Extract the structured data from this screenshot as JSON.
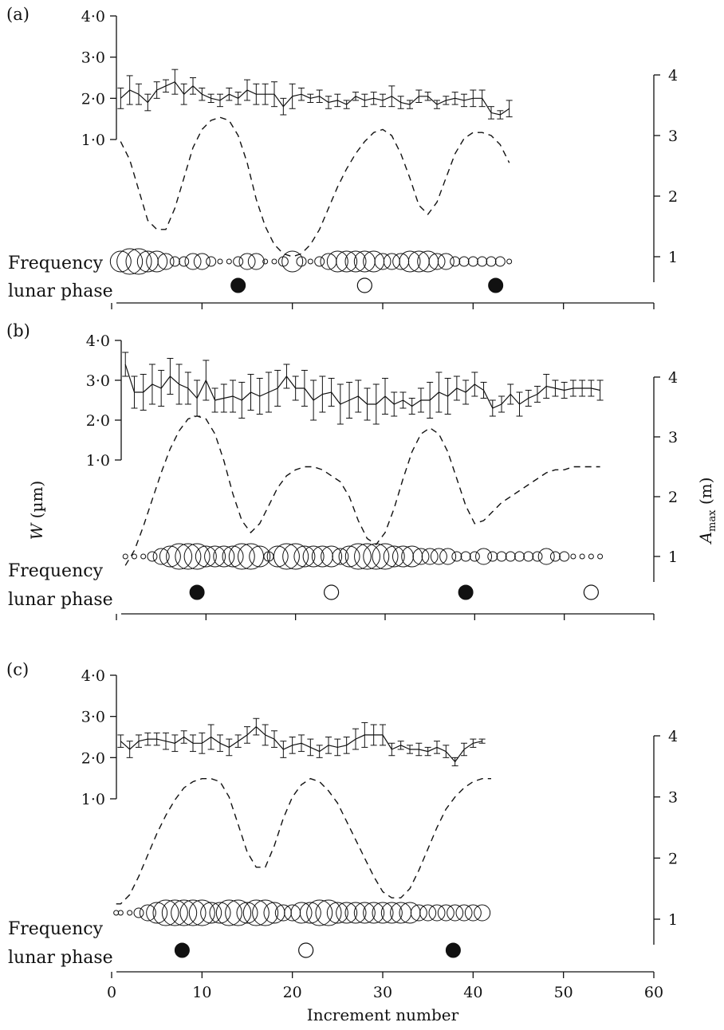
{
  "chart_data": [
    {
      "type": "line",
      "panel_label": "(a)",
      "xlabel": "Increment number",
      "ylabel_left": "W (µm)",
      "ylabel_right": "A max (m)",
      "left_ticks": [
        "4·0",
        "3·0",
        "2·0",
        "1·0"
      ],
      "right_ticks": [
        "4",
        "3",
        "2",
        "1"
      ],
      "left_ylim": [
        1.0,
        4.0
      ],
      "right_ylim": [
        0.5,
        4.0
      ],
      "xlim": [
        0,
        60
      ],
      "series": [
        {
          "kind": "W",
          "x": [
            1,
            2,
            3,
            4,
            5,
            6,
            7,
            8,
            9,
            10,
            11,
            12,
            13,
            14,
            15,
            16,
            17,
            18,
            19,
            20,
            21,
            22,
            23,
            24,
            25,
            26,
            27,
            28,
            29,
            30,
            31,
            32,
            33,
            34,
            35,
            36,
            37,
            38,
            39,
            40,
            41,
            42,
            43,
            44
          ],
          "y": [
            2.0,
            2.2,
            2.1,
            1.9,
            2.2,
            2.3,
            2.4,
            2.1,
            2.3,
            2.1,
            2.0,
            1.95,
            2.1,
            2.0,
            2.2,
            2.1,
            2.1,
            2.1,
            1.8,
            2.05,
            2.1,
            2.0,
            2.05,
            1.9,
            1.95,
            1.85,
            2.05,
            1.95,
            2.0,
            1.95,
            2.05,
            1.9,
            1.85,
            2.05,
            2.05,
            1.85,
            1.95,
            2.0,
            1.95,
            2.0,
            2.0,
            1.65,
            1.6,
            1.75
          ],
          "err": [
            0.25,
            0.35,
            0.25,
            0.2,
            0.2,
            0.15,
            0.3,
            0.25,
            0.2,
            0.15,
            0.1,
            0.15,
            0.15,
            0.15,
            0.25,
            0.25,
            0.25,
            0.3,
            0.2,
            0.3,
            0.15,
            0.1,
            0.15,
            0.15,
            0.15,
            0.1,
            0.1,
            0.15,
            0.15,
            0.15,
            0.25,
            0.15,
            0.1,
            0.15,
            0.1,
            0.1,
            0.1,
            0.15,
            0.15,
            0.2,
            0.2,
            0.15,
            0.1,
            0.2
          ]
        },
        {
          "kind": "Amax",
          "x": [
            1,
            2,
            3,
            4,
            5,
            6,
            7,
            8,
            9,
            10,
            11,
            12,
            13,
            14,
            15,
            16,
            17,
            18,
            19,
            20,
            21,
            22,
            23,
            24,
            25,
            26,
            27,
            28,
            29,
            30,
            31,
            32,
            33,
            34,
            35,
            36,
            37,
            38,
            39,
            40,
            41,
            42,
            43,
            44
          ],
          "y": [
            2.9,
            2.6,
            2.1,
            1.6,
            1.45,
            1.45,
            1.8,
            2.3,
            2.8,
            3.1,
            3.25,
            3.3,
            3.25,
            3.0,
            2.55,
            1.95,
            1.5,
            1.2,
            1.05,
            1.0,
            1.05,
            1.2,
            1.45,
            1.8,
            2.15,
            2.45,
            2.7,
            2.9,
            3.05,
            3.1,
            3.0,
            2.7,
            2.3,
            1.85,
            1.7,
            1.9,
            2.3,
            2.7,
            2.95,
            3.05,
            3.05,
            3.0,
            2.85,
            2.55
          ]
        }
      ],
      "frequency_x": [
        1,
        2,
        3,
        4,
        5,
        6,
        7,
        8,
        9,
        10,
        11,
        12,
        13,
        14,
        15,
        16,
        17,
        18,
        19,
        20,
        21,
        22,
        23,
        24,
        25,
        26,
        27,
        28,
        29,
        30,
        31,
        32,
        33,
        34,
        35,
        36,
        37,
        38,
        39,
        40,
        41,
        42,
        43,
        44
      ],
      "frequency_size": [
        3,
        4,
        4,
        3,
        3,
        2,
        1,
        1,
        2,
        2,
        1,
        0,
        0,
        1,
        2,
        2,
        0,
        0,
        1,
        3,
        1,
        0,
        1,
        2,
        3,
        3,
        3,
        3,
        3,
        2,
        2,
        2,
        3,
        3,
        3,
        2,
        2,
        1,
        1,
        1,
        1,
        1,
        1,
        0
      ],
      "new_moon_x": [
        14,
        42.5
      ],
      "full_moon_x": [
        28
      ],
      "side_labels": [
        "Frequency",
        "lunar phase"
      ]
    },
    {
      "type": "line",
      "panel_label": "(b)",
      "xlabel": "Increment number",
      "ylabel_left": "W (µm)",
      "ylabel_right": "A max (m)",
      "left_ticks": [
        "4·0",
        "3·0",
        "2·0",
        "1·0"
      ],
      "right_ticks": [
        "4",
        "3",
        "2",
        "1"
      ],
      "left_ylim": [
        1.0,
        4.0
      ],
      "right_ylim": [
        0.5,
        4.0
      ],
      "xlim": [
        0,
        60
      ],
      "series": [
        {
          "kind": "W",
          "x": [
            1,
            2,
            3,
            4,
            5,
            6,
            7,
            8,
            9,
            10,
            11,
            12,
            13,
            14,
            15,
            16,
            17,
            18,
            19,
            20,
            21,
            22,
            23,
            24,
            25,
            26,
            27,
            28,
            29,
            30,
            31,
            32,
            33,
            34,
            35,
            36,
            37,
            38,
            39,
            40,
            41,
            42,
            43,
            44,
            45,
            46,
            47,
            48,
            49,
            50,
            51,
            52,
            53,
            54
          ],
          "y": [
            3.4,
            2.7,
            2.7,
            2.9,
            2.8,
            3.1,
            2.9,
            2.8,
            2.55,
            3.0,
            2.5,
            2.55,
            2.6,
            2.5,
            2.7,
            2.6,
            2.7,
            2.8,
            3.1,
            2.8,
            2.8,
            2.5,
            2.65,
            2.7,
            2.4,
            2.5,
            2.6,
            2.4,
            2.4,
            2.6,
            2.4,
            2.5,
            2.35,
            2.5,
            2.5,
            2.7,
            2.6,
            2.8,
            2.7,
            2.9,
            2.75,
            2.3,
            2.4,
            2.65,
            2.4,
            2.55,
            2.65,
            2.85,
            2.8,
            2.75,
            2.8,
            2.8,
            2.8,
            2.75
          ],
          "err": [
            0.3,
            0.4,
            0.45,
            0.5,
            0.45,
            0.45,
            0.5,
            0.4,
            0.45,
            0.5,
            0.3,
            0.35,
            0.4,
            0.45,
            0.45,
            0.45,
            0.5,
            0.45,
            0.3,
            0.3,
            0.45,
            0.5,
            0.45,
            0.35,
            0.5,
            0.45,
            0.4,
            0.4,
            0.5,
            0.45,
            0.3,
            0.2,
            0.2,
            0.3,
            0.45,
            0.5,
            0.45,
            0.3,
            0.3,
            0.3,
            0.2,
            0.2,
            0.2,
            0.25,
            0.3,
            0.2,
            0.2,
            0.3,
            0.2,
            0.2,
            0.2,
            0.2,
            0.2,
            0.25
          ]
        },
        {
          "kind": "Amax",
          "x": [
            1,
            2,
            3,
            4,
            5,
            6,
            7,
            8,
            9,
            10,
            11,
            12,
            13,
            14,
            15,
            16,
            17,
            18,
            19,
            20,
            21,
            22,
            23,
            24,
            25,
            26,
            27,
            28,
            29,
            30,
            31,
            32,
            33,
            34,
            35,
            36,
            37,
            38,
            39,
            40,
            41,
            42,
            43,
            44,
            45,
            46,
            47,
            48,
            49,
            50,
            51,
            52,
            53,
            54
          ],
          "y": [
            0.85,
            1.1,
            1.5,
            1.95,
            2.4,
            2.8,
            3.1,
            3.3,
            3.35,
            3.3,
            3.05,
            2.6,
            2.05,
            1.6,
            1.4,
            1.55,
            1.85,
            2.15,
            2.35,
            2.45,
            2.5,
            2.5,
            2.45,
            2.35,
            2.25,
            2.0,
            1.6,
            1.3,
            1.2,
            1.4,
            1.8,
            2.3,
            2.75,
            3.05,
            3.15,
            3.05,
            2.75,
            2.3,
            1.85,
            1.55,
            1.6,
            1.75,
            1.9,
            2.0,
            2.1,
            2.2,
            2.3,
            2.4,
            2.45,
            2.45,
            2.5,
            2.5,
            2.5,
            2.5
          ]
        }
      ],
      "frequency_x": [
        1,
        2,
        3,
        4,
        5,
        6,
        7,
        8,
        9,
        10,
        11,
        12,
        13,
        14,
        15,
        16,
        17,
        18,
        19,
        20,
        21,
        22,
        23,
        24,
        25,
        26,
        27,
        28,
        29,
        30,
        31,
        32,
        33,
        34,
        35,
        36,
        37,
        38,
        39,
        40,
        41,
        42,
        43,
        44,
        45,
        46,
        47,
        48,
        49,
        50,
        51,
        52,
        53,
        54
      ],
      "frequency_size": [
        0,
        0,
        0,
        1,
        2,
        3,
        4,
        4,
        4,
        3,
        3,
        3,
        3,
        4,
        4,
        3,
        1,
        3,
        4,
        4,
        3,
        3,
        3,
        3,
        2,
        3,
        4,
        4,
        4,
        4,
        3,
        3,
        3,
        2,
        2,
        2,
        2,
        1,
        1,
        1,
        2,
        1,
        1,
        1,
        1,
        1,
        1,
        2,
        1,
        1,
        0,
        0,
        0,
        0
      ],
      "new_moon_x": [
        9,
        39
      ],
      "full_moon_x": [
        24,
        53
      ],
      "side_labels": [
        "Frequency",
        "lunar phase"
      ]
    },
    {
      "type": "line",
      "panel_label": "(c)",
      "xlabel": "Increment number",
      "ylabel_left": "W (µm)",
      "ylabel_right": "A max (m)",
      "left_ticks": [
        "4·0",
        "3·0",
        "2·0",
        "1·0"
      ],
      "right_ticks": [
        "4",
        "3",
        "2",
        "1"
      ],
      "x_ticks": [
        "0",
        "10",
        "20",
        "30",
        "40",
        "50",
        "60"
      ],
      "left_ylim": [
        1.0,
        4.0
      ],
      "right_ylim": [
        0.5,
        4.0
      ],
      "xlim": [
        0,
        60
      ],
      "series": [
        {
          "kind": "W",
          "x": [
            1,
            2,
            3,
            4,
            5,
            6,
            7,
            8,
            9,
            10,
            11,
            12,
            13,
            14,
            15,
            16,
            17,
            18,
            19,
            20,
            21,
            22,
            23,
            24,
            25,
            26,
            27,
            28,
            29,
            30,
            31,
            32,
            33,
            34,
            35,
            36,
            37,
            38,
            39,
            40,
            41
          ],
          "y": [
            2.4,
            2.2,
            2.4,
            2.45,
            2.45,
            2.4,
            2.35,
            2.5,
            2.35,
            2.35,
            2.5,
            2.35,
            2.25,
            2.4,
            2.55,
            2.75,
            2.55,
            2.45,
            2.2,
            2.3,
            2.35,
            2.25,
            2.15,
            2.3,
            2.25,
            2.3,
            2.45,
            2.55,
            2.55,
            2.55,
            2.2,
            2.3,
            2.2,
            2.2,
            2.15,
            2.25,
            2.15,
            1.9,
            2.2,
            2.35,
            2.4
          ],
          "err": [
            0.15,
            0.2,
            0.15,
            0.15,
            0.15,
            0.2,
            0.2,
            0.15,
            0.2,
            0.25,
            0.3,
            0.2,
            0.2,
            0.15,
            0.2,
            0.2,
            0.25,
            0.2,
            0.2,
            0.2,
            0.2,
            0.2,
            0.15,
            0.2,
            0.2,
            0.2,
            0.25,
            0.3,
            0.25,
            0.25,
            0.15,
            0.1,
            0.1,
            0.15,
            0.1,
            0.15,
            0.15,
            0.1,
            0.15,
            0.1,
            0.05
          ]
        },
        {
          "kind": "Amax",
          "x": [
            0.5,
            1,
            2,
            3,
            4,
            5,
            6,
            7,
            8,
            9,
            10,
            11,
            12,
            13,
            14,
            15,
            16,
            17,
            18,
            19,
            20,
            21,
            22,
            23,
            24,
            25,
            26,
            27,
            28,
            29,
            30,
            31,
            32,
            33,
            34,
            35,
            36,
            37,
            38,
            39,
            40,
            41,
            42
          ],
          "y": [
            1.25,
            1.25,
            1.4,
            1.7,
            2.05,
            2.4,
            2.7,
            2.95,
            3.15,
            3.25,
            3.3,
            3.3,
            3.25,
            3.0,
            2.55,
            2.1,
            1.85,
            1.85,
            2.2,
            2.65,
            3.0,
            3.2,
            3.3,
            3.25,
            3.1,
            2.9,
            2.6,
            2.3,
            2.0,
            1.7,
            1.45,
            1.35,
            1.35,
            1.5,
            1.8,
            2.15,
            2.5,
            2.8,
            3.0,
            3.15,
            3.25,
            3.3,
            3.3
          ]
        }
      ],
      "frequency_x": [
        0.5,
        1,
        2,
        3,
        4,
        5,
        6,
        7,
        8,
        9,
        10,
        11,
        12,
        13,
        14,
        15,
        16,
        17,
        18,
        19,
        20,
        21,
        22,
        23,
        24,
        25,
        26,
        27,
        28,
        29,
        30,
        31,
        32,
        33,
        34,
        35,
        36,
        37,
        38,
        39,
        40,
        41
      ],
      "frequency_size": [
        0,
        0,
        0,
        1,
        2,
        3,
        4,
        4,
        4,
        4,
        4,
        3,
        3,
        4,
        4,
        3,
        4,
        4,
        3,
        2,
        2,
        3,
        3,
        4,
        4,
        3,
        3,
        3,
        3,
        3,
        3,
        3,
        3,
        3,
        2,
        2,
        2,
        2,
        2,
        2,
        2,
        2
      ],
      "new_moon_x": [
        7.8,
        37.8
      ],
      "full_moon_x": [
        21.5
      ],
      "side_labels": [
        "Frequency",
        "lunar phase"
      ]
    }
  ]
}
